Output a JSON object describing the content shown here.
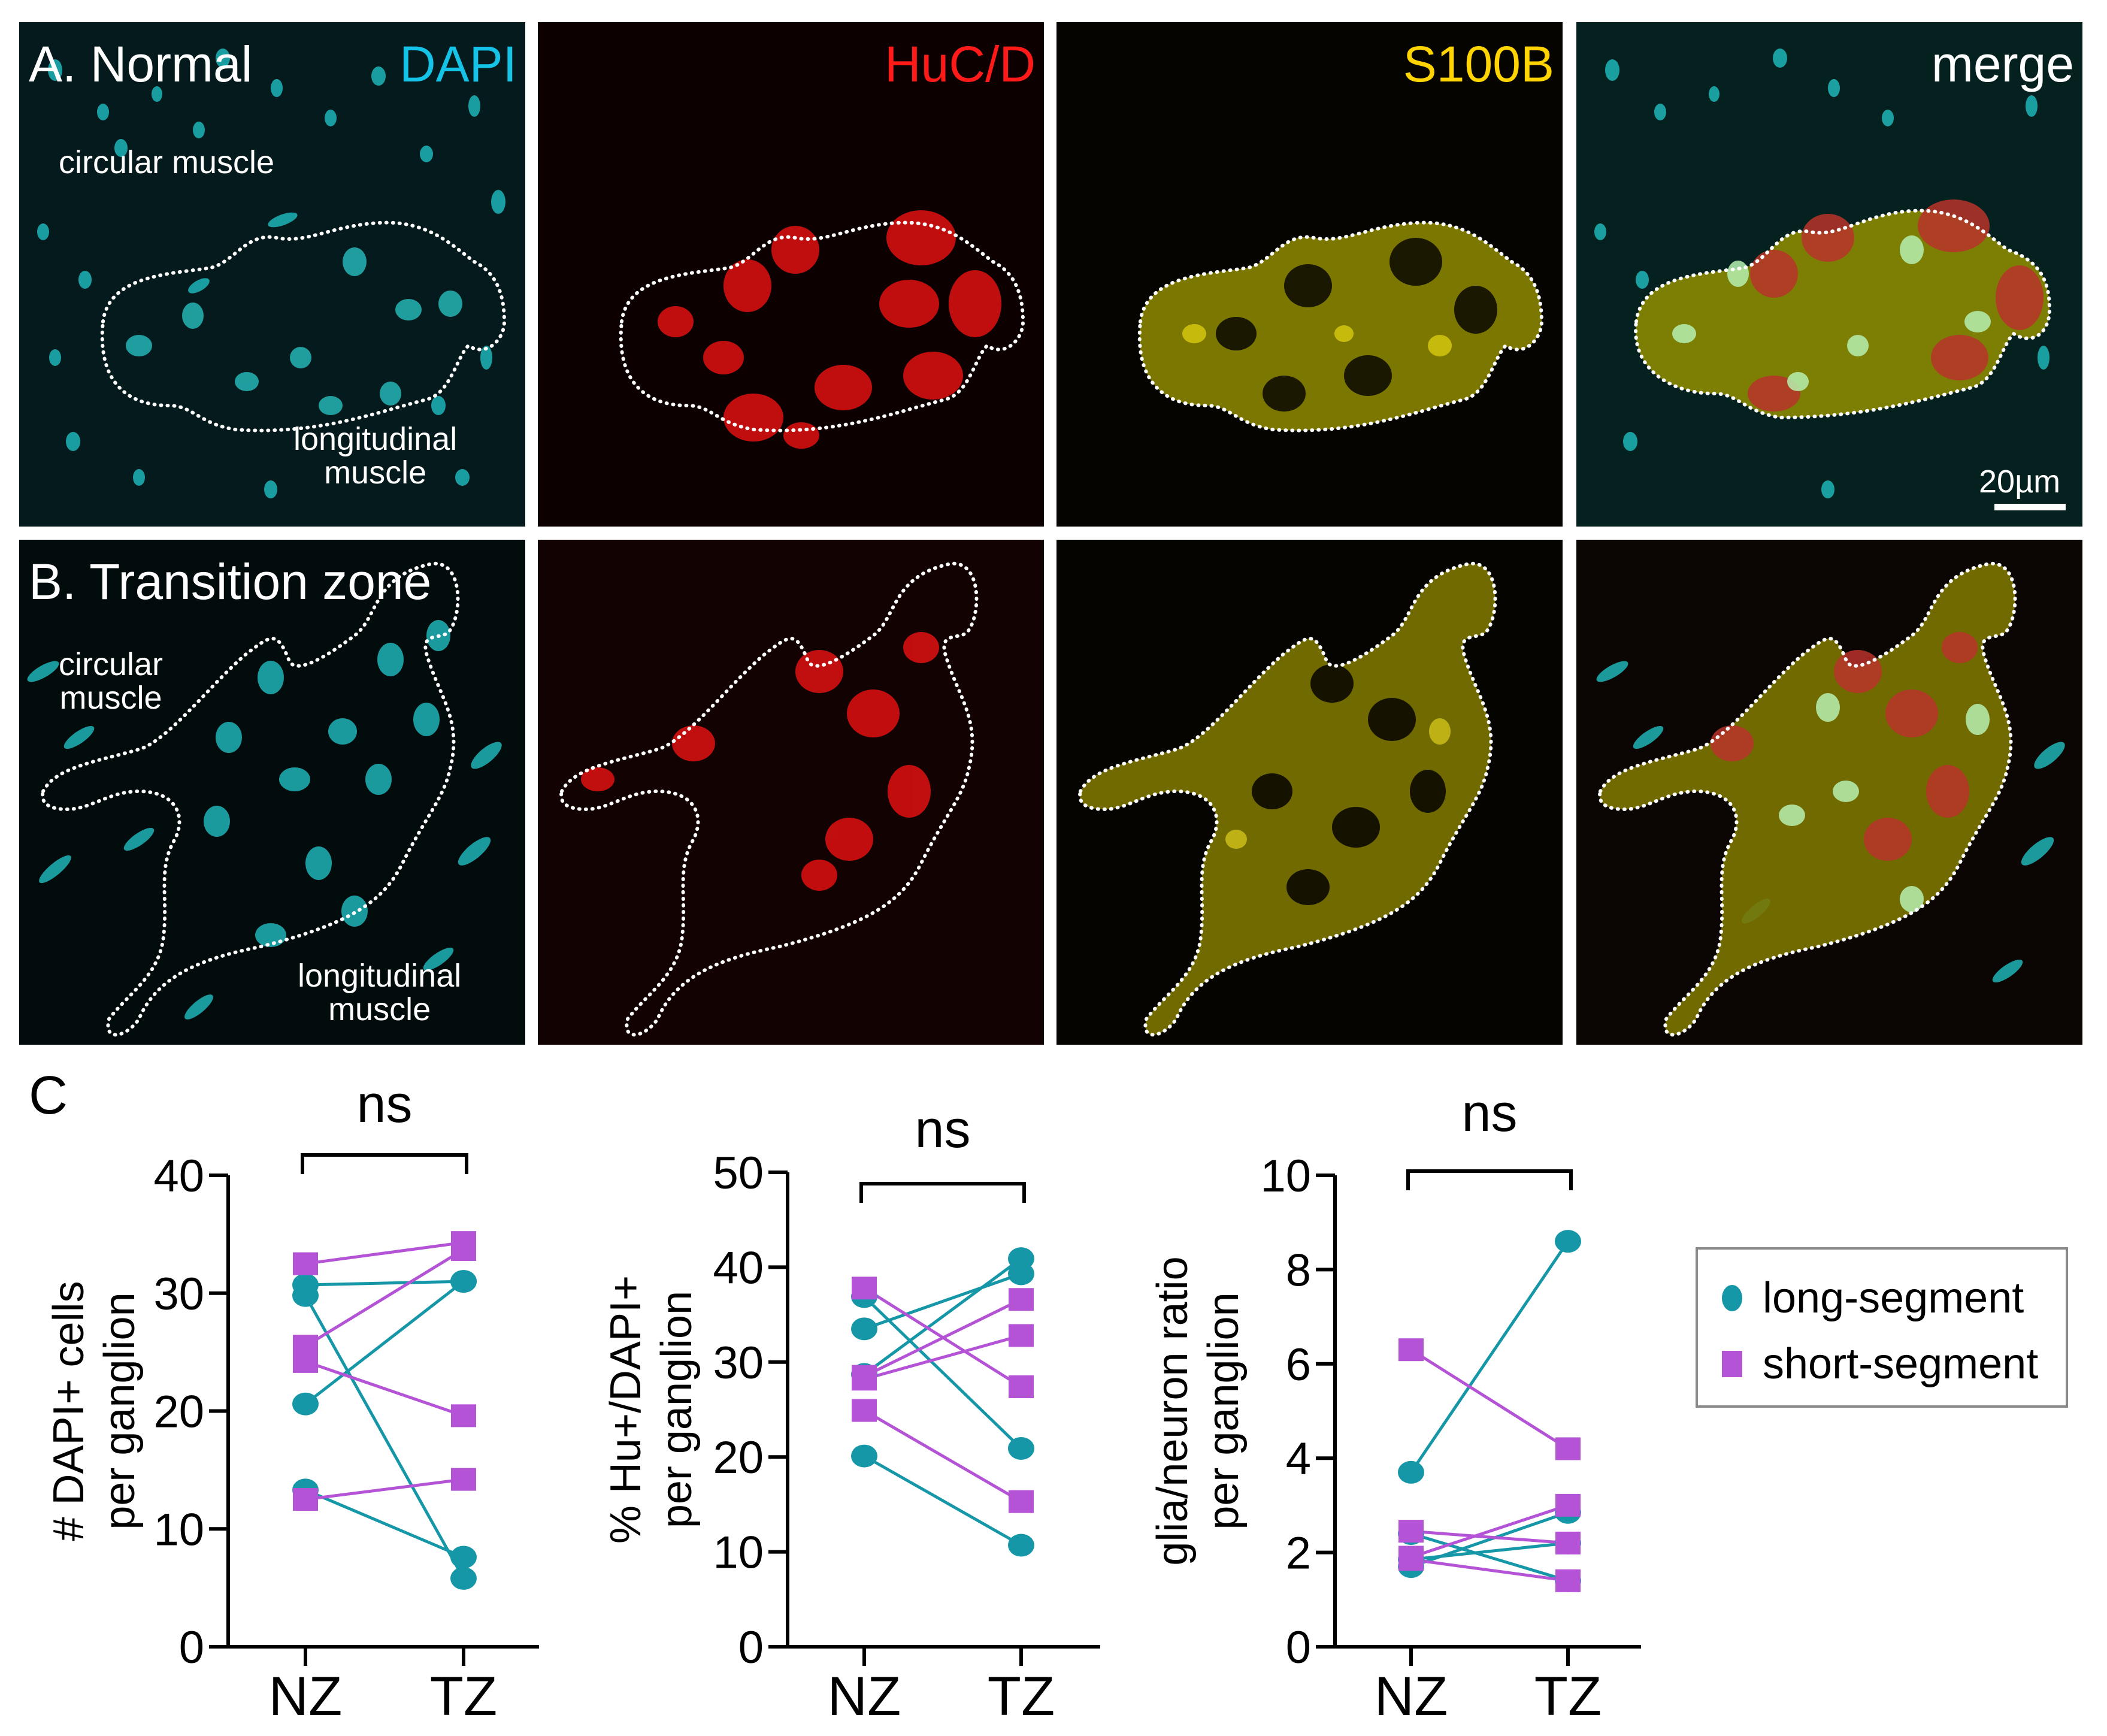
{
  "figure": {
    "row_a": {
      "label": "A. Normal",
      "panels": [
        {
          "channel": "DAPI",
          "color": "#14c3e6"
        },
        {
          "channel": "HuC/D",
          "color": "#ff1a1a"
        },
        {
          "channel": "S100B",
          "color": "#ffd400"
        },
        {
          "channel": "merge",
          "color": "#ffffff"
        }
      ],
      "tissue_labels": {
        "top": "circular muscle",
        "bottom_line1": "longitudinal",
        "bottom_line2": "muscle"
      },
      "scale_bar": "20µm"
    },
    "row_b": {
      "label": "B. Transition zone",
      "tissue_labels": {
        "top_line1": "circular",
        "top_line2": "muscle",
        "bottom_line1": "longitudinal",
        "bottom_line2": "muscle"
      }
    },
    "panel_c_label": "C",
    "legend": {
      "items": [
        {
          "label": "long-segment",
          "marker": "circle",
          "color": "#1597a8"
        },
        {
          "label": "short-segment",
          "marker": "square",
          "color": "#b453d6"
        }
      ]
    }
  },
  "chart_data": [
    {
      "type": "line",
      "title": "",
      "xlabel": "",
      "ylabel": "# DAPI+ cells per ganglion",
      "ylabel_lines": [
        "# DAPI+ cells",
        "per ganglion"
      ],
      "categories": [
        "NZ",
        "TZ"
      ],
      "ylim": [
        0,
        40
      ],
      "yticks": [
        0,
        10,
        20,
        30,
        40
      ],
      "significance": "ns",
      "grid": false,
      "series": [
        {
          "name": "long-segment",
          "values": [
            30.7,
            31.0
          ]
        },
        {
          "name": "long-segment",
          "values": [
            29.8,
            5.8
          ]
        },
        {
          "name": "long-segment",
          "values": [
            20.6,
            31.0
          ]
        },
        {
          "name": "long-segment",
          "values": [
            13.3,
            7.6
          ]
        },
        {
          "name": "short-segment",
          "values": [
            32.5,
            34.3
          ]
        },
        {
          "name": "short-segment",
          "values": [
            25.5,
            33.7
          ]
        },
        {
          "name": "short-segment",
          "values": [
            24.2,
            19.6
          ]
        },
        {
          "name": "short-segment",
          "values": [
            12.5,
            14.2
          ]
        }
      ]
    },
    {
      "type": "line",
      "title": "",
      "xlabel": "",
      "ylabel": "% Hu+/DAPI+ per ganglion",
      "ylabel_lines": [
        "% Hu+/DAPI+",
        "per ganglion"
      ],
      "categories": [
        "NZ",
        "TZ"
      ],
      "ylim": [
        0,
        50
      ],
      "yticks": [
        0,
        10,
        20,
        30,
        40,
        50
      ],
      "significance": "ns",
      "grid": false,
      "series": [
        {
          "name": "long-segment",
          "values": [
            36.9,
            20.9
          ]
        },
        {
          "name": "long-segment",
          "values": [
            33.5,
            39.3
          ]
        },
        {
          "name": "long-segment",
          "values": [
            28.7,
            40.9
          ]
        },
        {
          "name": "long-segment",
          "values": [
            20.1,
            10.7
          ]
        },
        {
          "name": "short-segment",
          "values": [
            37.8,
            27.4
          ]
        },
        {
          "name": "short-segment",
          "values": [
            28.5,
            36.6
          ]
        },
        {
          "name": "short-segment",
          "values": [
            28.2,
            32.8
          ]
        },
        {
          "name": "short-segment",
          "values": [
            24.9,
            15.3
          ]
        }
      ]
    },
    {
      "type": "line",
      "title": "",
      "xlabel": "",
      "ylabel": "glia/neuron ratio per ganglion",
      "ylabel_lines": [
        "glia/neuron ratio",
        "per ganglion"
      ],
      "categories": [
        "NZ",
        "TZ"
      ],
      "ylim": [
        0,
        10
      ],
      "yticks": [
        0,
        2,
        4,
        6,
        8,
        10
      ],
      "significance": "ns",
      "grid": false,
      "series": [
        {
          "name": "long-segment",
          "values": [
            3.7,
            8.6
          ]
        },
        {
          "name": "long-segment",
          "values": [
            2.4,
            1.4
          ]
        },
        {
          "name": "long-segment",
          "values": [
            1.7,
            2.85
          ]
        },
        {
          "name": "long-segment",
          "values": [
            1.85,
            2.2
          ]
        },
        {
          "name": "short-segment",
          "values": [
            6.3,
            4.2
          ]
        },
        {
          "name": "short-segment",
          "values": [
            2.45,
            2.2
          ]
        },
        {
          "name": "short-segment",
          "values": [
            1.9,
            3.0
          ]
        },
        {
          "name": "short-segment",
          "values": [
            1.85,
            1.4
          ]
        }
      ]
    }
  ]
}
